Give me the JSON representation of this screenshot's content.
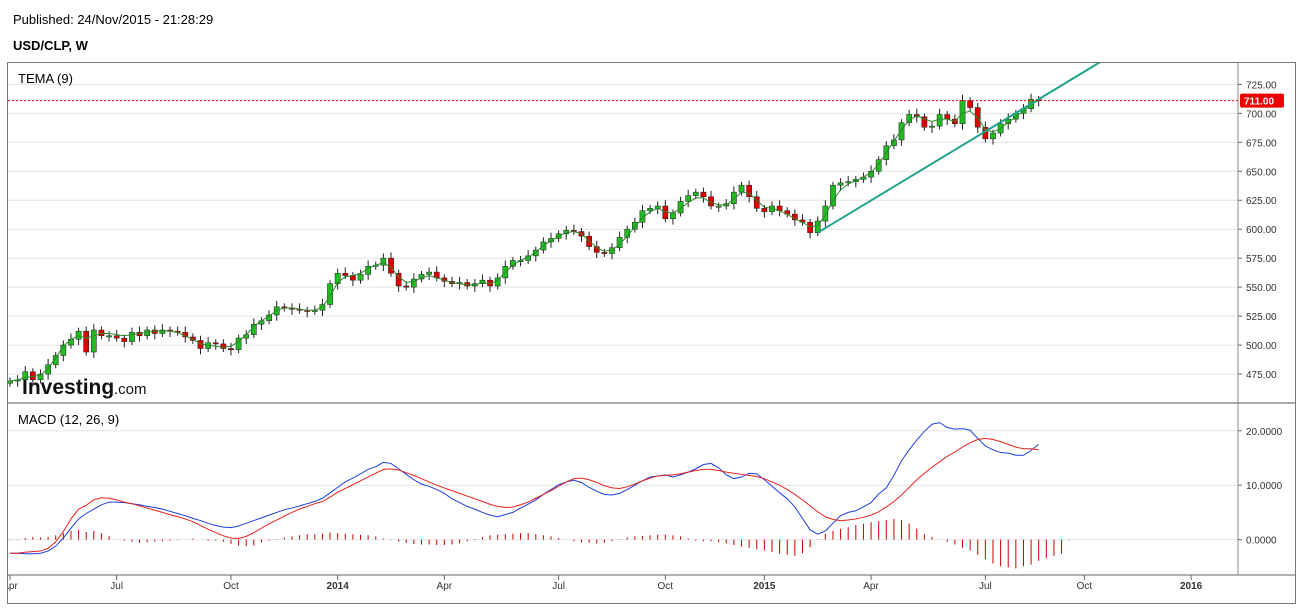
{
  "published": "Published: 24/Nov/2015 - 21:28:29",
  "symbol": "USD/CLP, W",
  "branding": {
    "name": "Investing",
    "suffix": ".com"
  },
  "colors": {
    "up": "#22bb22",
    "down": "#dd0000",
    "tema": "#2a8a2a",
    "trendline": "#1fa38a",
    "macd": "#1f3fe0",
    "signal": "#e8231f",
    "histogram": "#cc0000",
    "price_tag": "#ee0000"
  },
  "chart_data": [
    {
      "type": "candlestick",
      "title": "TEMA (9)",
      "indicator": "TEMA (9)",
      "ylim": [
        450,
        740
      ],
      "y_ticks": [
        "475.00",
        "500.00",
        "525.00",
        "550.00",
        "575.00",
        "600.00",
        "625.00",
        "650.00",
        "675.00",
        "700.00",
        "725.00"
      ],
      "x_ticks": [
        "Apr",
        "Jul",
        "Oct",
        "2014",
        "Apr",
        "Jul",
        "Oct",
        "2015",
        "Apr",
        "Jul",
        "Oct",
        "2016"
      ],
      "x_start_week": 0,
      "last_price": 711.0,
      "last_price_label": "711.00",
      "close": [
        469,
        470,
        477,
        470,
        475,
        483,
        491,
        500,
        505,
        512,
        494,
        513,
        508,
        508,
        506,
        503,
        511,
        508,
        513,
        510,
        513,
        512,
        511,
        507,
        504,
        497,
        502,
        501,
        497,
        496,
        506,
        509,
        518,
        521,
        526,
        533,
        532,
        531,
        530,
        529,
        530,
        535,
        553,
        562,
        560,
        556,
        561,
        568,
        569,
        575,
        562,
        551,
        550,
        557,
        561,
        563,
        558,
        555,
        553,
        554,
        551,
        553,
        556,
        551,
        558,
        568,
        573,
        573,
        577,
        582,
        589,
        592,
        596,
        599,
        598,
        594,
        585,
        580,
        579,
        584,
        593,
        600,
        606,
        616,
        618,
        620,
        609,
        614,
        624,
        629,
        632,
        628,
        620,
        620,
        622,
        632,
        638,
        628,
        618,
        615,
        620,
        616,
        613,
        608,
        606,
        597,
        607,
        620,
        638,
        640,
        641,
        643,
        645,
        650,
        660,
        672,
        677,
        692,
        699,
        697,
        688,
        689,
        699,
        695,
        691,
        711,
        705,
        688,
        678,
        683,
        691,
        695,
        700,
        704,
        712,
        711
      ],
      "tema": [
        469,
        470,
        472,
        473,
        474,
        480,
        489,
        499,
        505,
        508,
        506,
        508,
        510,
        510,
        509,
        508,
        509,
        510,
        511,
        512,
        512,
        512,
        511,
        508,
        505,
        501,
        500,
        499,
        498,
        499,
        503,
        509,
        516,
        521,
        525,
        530,
        532,
        532,
        531,
        530,
        530,
        533,
        542,
        554,
        559,
        560,
        562,
        566,
        569,
        571,
        567,
        559,
        554,
        555,
        558,
        560,
        558,
        556,
        554,
        553,
        552,
        552,
        554,
        553,
        556,
        563,
        569,
        573,
        576,
        580,
        586,
        590,
        594,
        597,
        598,
        596,
        590,
        584,
        581,
        582,
        587,
        594,
        602,
        610,
        615,
        618,
        615,
        614,
        618,
        623,
        627,
        627,
        623,
        621,
        621,
        626,
        632,
        631,
        625,
        619,
        618,
        616,
        613,
        609,
        606,
        602,
        603,
        612,
        625,
        634,
        639,
        642,
        645,
        649,
        656,
        666,
        676,
        686,
        694,
        698,
        695,
        693,
        695,
        695,
        693,
        700,
        702,
        696,
        686,
        684,
        687,
        692,
        697,
        702,
        708,
        711
      ],
      "trendline": {
        "from": {
          "week": 106,
          "value": 597
        },
        "to": {
          "week": 143,
          "value": 744
        }
      }
    },
    {
      "type": "line",
      "title": "MACD (12, 26, 9)",
      "indicator": "MACD (12, 26, 9)",
      "ylim": [
        -6.5,
        24
      ],
      "y_ticks": [
        "0.0000",
        "10.0000",
        "20.0000"
      ],
      "series": [
        {
          "values": [
            -2.5,
            -2.5,
            -2.3,
            -2.2,
            -2.1,
            -1.6,
            -0.4,
            1.5,
            3.8,
            5.6,
            6.3,
            7.3,
            7.7,
            7.6,
            7.3,
            6.9,
            6.6,
            6.2,
            5.8,
            5.4,
            5.0,
            4.6,
            4.2,
            3.8,
            3.3,
            2.6,
            1.9,
            1.3,
            0.7,
            0.3,
            0.2,
            0.6,
            1.3,
            2.1,
            2.9,
            3.6,
            4.3,
            5.0,
            5.6,
            6.1,
            6.6,
            7.0,
            7.8,
            8.7,
            9.4,
            10.1,
            10.8,
            11.5,
            12.2,
            12.9,
            13.0,
            12.8,
            12.3,
            11.8,
            11.2,
            10.6,
            10.0,
            9.5,
            9.0,
            8.5,
            8.0,
            7.5,
            7.0,
            6.5,
            6.1,
            5.9,
            6.0,
            6.4,
            6.9,
            7.6,
            8.3,
            9.0,
            9.8,
            10.6,
            11.2,
            11.3,
            11.0,
            10.5,
            9.9,
            9.5,
            9.4,
            9.7,
            10.2,
            10.8,
            11.3,
            11.7,
            11.8,
            11.9,
            12.1,
            12.4,
            12.7,
            12.9,
            12.9,
            12.7,
            12.4,
            12.2,
            12.0,
            11.8,
            11.6,
            11.2,
            10.6,
            10.0,
            9.2,
            8.3,
            7.3,
            6.2,
            5.1,
            4.2,
            3.7,
            3.5,
            3.6,
            3.8,
            4.1,
            4.5,
            5.1,
            6.0,
            7.0,
            8.2,
            9.6,
            11.0,
            12.2,
            13.3,
            14.3,
            15.3,
            16.1,
            17.0,
            17.8,
            18.4,
            18.6,
            18.4,
            18.0,
            17.5,
            17.0,
            16.7,
            16.7,
            16.5
          ],
          "name": ""
        },
        {
          "values": [
            -2.5,
            -2.5,
            -2.6,
            -2.6,
            -2.5,
            -2.1,
            -1.2,
            0.3,
            2.1,
            3.8,
            4.8,
            5.6,
            6.4,
            6.9,
            6.9,
            6.8,
            6.6,
            6.4,
            6.1,
            5.9,
            5.6,
            5.2,
            4.8,
            4.4,
            3.9,
            3.5,
            3.0,
            2.6,
            2.3,
            2.2,
            2.5,
            3.0,
            3.5,
            4.0,
            4.5,
            5.0,
            5.5,
            5.8,
            6.2,
            6.6,
            7.0,
            7.6,
            8.6,
            9.6,
            10.6,
            11.3,
            12.1,
            12.9,
            13.4,
            14.2,
            14.0,
            13.0,
            12.0,
            11.0,
            10.2,
            9.8,
            9.2,
            8.5,
            7.5,
            6.8,
            6.1,
            5.6,
            5.0,
            4.5,
            4.2,
            4.6,
            5.0,
            5.8,
            6.5,
            7.3,
            8.3,
            9.2,
            10.1,
            10.6,
            10.9,
            10.5,
            9.6,
            8.9,
            8.3,
            8.2,
            8.5,
            9.2,
            10.0,
            10.8,
            11.5,
            11.7,
            11.9,
            11.5,
            11.9,
            12.4,
            13.0,
            13.8,
            14.0,
            13.2,
            11.9,
            11.2,
            11.5,
            12.2,
            12.1,
            11.0,
            9.8,
            8.6,
            7.5,
            6.0,
            3.9,
            1.8,
            1.0,
            1.6,
            3.0,
            4.4,
            5.0,
            5.3,
            6.0,
            6.8,
            8.4,
            9.5,
            11.8,
            14.5,
            16.5,
            18.3,
            19.9,
            21.2,
            21.5,
            20.6,
            20.3,
            20.4,
            20.1,
            18.6,
            17.2,
            16.5,
            16.0,
            15.9,
            15.5,
            15.5,
            16.4,
            17.5
          ],
          "name": ""
        }
      ],
      "histogram": [
        -0.1,
        -0.1,
        0.3,
        0.5,
        0.4,
        0.5,
        0.8,
        1.2,
        1.6,
        1.8,
        1.4,
        1.6,
        1.2,
        0.6,
        0.0,
        -0.2,
        -0.4,
        -0.6,
        -0.5,
        -0.4,
        -0.3,
        -0.2,
        -0.1,
        0.0,
        0.2,
        0.0,
        -0.2,
        -0.2,
        -0.4,
        -0.8,
        -1.1,
        -1.2,
        -1.1,
        -0.5,
        -0.2,
        0.1,
        0.4,
        0.6,
        0.8,
        1.0,
        1.0,
        1.1,
        1.3,
        1.2,
        1.1,
        1.0,
        0.9,
        0.8,
        0.6,
        0.2,
        -0.1,
        -0.4,
        -0.6,
        -0.8,
        -0.9,
        -0.9,
        -1.0,
        -1.0,
        -0.9,
        -0.7,
        -0.3,
        0.1,
        0.5,
        0.8,
        0.9,
        1.0,
        1.1,
        1.2,
        1.2,
        1.0,
        0.8,
        0.6,
        0.3,
        0.0,
        -0.3,
        -0.5,
        -0.6,
        -0.7,
        -0.6,
        -0.3,
        0.1,
        0.4,
        0.6,
        0.7,
        0.8,
        0.9,
        0.9,
        0.8,
        0.6,
        0.2,
        -0.2,
        -0.3,
        -0.3,
        -0.5,
        -0.7,
        -1.0,
        -1.3,
        -1.5,
        -1.8,
        -2.0,
        -2.3,
        -2.6,
        -2.8,
        -3.0,
        -2.5,
        -1.4,
        0.1,
        1.1,
        1.6,
        2.0,
        2.3,
        2.7,
        2.9,
        3.2,
        3.4,
        3.6,
        3.8,
        3.6,
        3.0,
        2.0,
        1.0,
        0.5,
        0.0,
        -0.4,
        -0.9,
        -1.5,
        -2.0,
        -2.8,
        -3.6,
        -4.4,
        -4.9,
        -5.1,
        -5.3,
        -4.9,
        -4.6,
        -3.9,
        -3.4,
        -3.0,
        -2.6,
        -0.1
      ],
      "hist_note": "histogram bars (red) oscillating around zero"
    }
  ]
}
